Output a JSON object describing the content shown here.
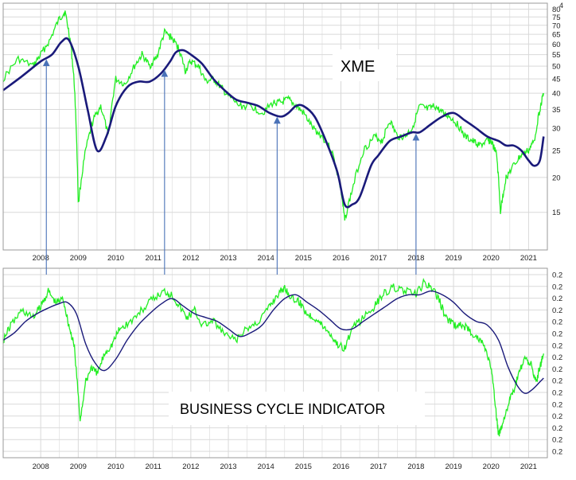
{
  "colors": {
    "price": "#22ee22",
    "average": "#1a1a7a",
    "arrow": "#4a72b8",
    "grid": "#d9d9d9",
    "axis_text": "#222222",
    "frame": "#9a9a9a"
  },
  "years": [
    "2008",
    "2009",
    "2010",
    "2011",
    "2012",
    "2013",
    "2014",
    "2015",
    "2016",
    "2017",
    "2018",
    "2019",
    "2020",
    "2021"
  ],
  "chart_data": [
    {
      "type": "line",
      "title": "XME",
      "x_range": [
        2007.0,
        2021.5
      ],
      "y_scale": "log",
      "ylim": [
        11,
        84
      ],
      "ytick_values": [
        15,
        20,
        25,
        30,
        35,
        40,
        45,
        50,
        55,
        60,
        65,
        70,
        75,
        80
      ],
      "ytick_labels": [
        "15",
        "20",
        "25",
        "30",
        "35",
        "40",
        "45",
        "50",
        "55",
        "60",
        "65",
        "70",
        "75",
        "80"
      ],
      "top_cut_label": "4",
      "series": [
        {
          "role": "price",
          "x": [
            2007.0,
            2007.4,
            2007.8,
            2008.0,
            2008.25,
            2008.5,
            2008.65,
            2008.8,
            2008.9,
            2009.0,
            2009.2,
            2009.4,
            2009.6,
            2009.8,
            2010.0,
            2010.25,
            2010.5,
            2010.7,
            2010.9,
            2011.1,
            2011.3,
            2011.5,
            2011.7,
            2011.85,
            2012.0,
            2012.2,
            2012.4,
            2012.6,
            2012.8,
            2013.0,
            2013.3,
            2013.6,
            2013.9,
            2014.2,
            2014.4,
            2014.6,
            2014.8,
            2015.0,
            2015.25,
            2015.5,
            2015.75,
            2016.0,
            2016.1,
            2016.3,
            2016.6,
            2016.9,
            2017.1,
            2017.3,
            2017.5,
            2017.7,
            2017.9,
            2018.1,
            2018.3,
            2018.5,
            2018.7,
            2018.9,
            2019.1,
            2019.3,
            2019.5,
            2019.7,
            2019.9,
            2020.0,
            2020.15,
            2020.25,
            2020.4,
            2020.6,
            2020.8,
            2021.0,
            2021.15,
            2021.3,
            2021.4
          ],
          "y": [
            45,
            53,
            50,
            55,
            62,
            74,
            78,
            60,
            42,
            16,
            25,
            32,
            36,
            28,
            45,
            43,
            50,
            55,
            50,
            54,
            66,
            63,
            57,
            48,
            52,
            50,
            44,
            45,
            42,
            39,
            36,
            36,
            34,
            37,
            37,
            38,
            36,
            34,
            30,
            28,
            25,
            18,
            14,
            18,
            25,
            28,
            27,
            32,
            28,
            28,
            30,
            36,
            35,
            36,
            34,
            33,
            31,
            28,
            27,
            26,
            27,
            27,
            24,
            15,
            20,
            22,
            24,
            25,
            27,
            35,
            40
          ]
        },
        {
          "role": "moving-average",
          "x": [
            2007.0,
            2007.5,
            2008.0,
            2008.3,
            2008.55,
            2008.75,
            2009.0,
            2009.25,
            2009.5,
            2009.75,
            2010.0,
            2010.3,
            2010.6,
            2010.9,
            2011.2,
            2011.45,
            2011.6,
            2011.8,
            2012.0,
            2012.3,
            2012.6,
            2012.9,
            2013.2,
            2013.5,
            2013.8,
            2014.1,
            2014.4,
            2014.6,
            2014.8,
            2015.0,
            2015.3,
            2015.6,
            2015.9,
            2016.1,
            2016.3,
            2016.5,
            2016.8,
            2017.0,
            2017.3,
            2017.6,
            2017.9,
            2018.1,
            2018.4,
            2018.7,
            2019.0,
            2019.3,
            2019.6,
            2019.9,
            2020.2,
            2020.4,
            2020.6,
            2020.8,
            2021.0,
            2021.15,
            2021.3,
            2021.4
          ],
          "y": [
            41,
            46,
            52,
            55,
            61,
            62,
            50,
            35,
            25,
            28,
            36,
            42,
            44,
            44,
            47,
            52,
            56,
            57,
            55,
            51,
            45,
            41,
            38,
            37,
            36,
            34,
            33,
            34,
            36,
            36,
            33,
            27,
            21,
            16,
            16,
            17,
            22,
            24,
            27,
            28,
            29,
            29,
            31,
            33,
            34,
            32,
            30,
            28,
            27,
            26,
            26,
            25,
            23,
            22,
            23,
            28
          ]
        }
      ],
      "annotation_label": "XME",
      "arrow_dates": [
        2008.15,
        2011.3,
        2014.3,
        2018.0
      ]
    },
    {
      "type": "line",
      "title": "BUSINESS CYCLE INDICATOR",
      "x_range": [
        2007.0,
        2021.5
      ],
      "ylim": [
        0,
        100
      ],
      "ytick_labels": [
        "0.2",
        "0.2",
        "0.2",
        "0.2",
        "0.2",
        "0.2",
        "0.2",
        "0.2",
        "0.2",
        "0.2",
        "0.2",
        "0.2",
        "0.2",
        "0.2",
        "0.2",
        "0.2"
      ],
      "series": [
        {
          "role": "indicator",
          "x": [
            2007.0,
            2007.2,
            2007.5,
            2007.8,
            2008.0,
            2008.2,
            2008.4,
            2008.6,
            2008.75,
            2008.9,
            2009.05,
            2009.2,
            2009.35,
            2009.5,
            2009.7,
            2009.9,
            2010.1,
            2010.4,
            2010.7,
            2011.0,
            2011.3,
            2011.5,
            2011.7,
            2011.9,
            2012.1,
            2012.3,
            2012.6,
            2012.9,
            2013.2,
            2013.5,
            2013.8,
            2014.1,
            2014.3,
            2014.5,
            2014.7,
            2014.9,
            2015.1,
            2015.3,
            2015.5,
            2015.7,
            2015.9,
            2016.1,
            2016.3,
            2016.6,
            2016.9,
            2017.1,
            2017.4,
            2017.7,
            2018.0,
            2018.2,
            2018.4,
            2018.6,
            2018.8,
            2019.0,
            2019.2,
            2019.4,
            2019.6,
            2019.8,
            2020.0,
            2020.1,
            2020.2,
            2020.3,
            2020.45,
            2020.6,
            2020.75,
            2020.9,
            2021.05,
            2021.2,
            2021.3,
            2021.4
          ],
          "y": [
            62,
            70,
            78,
            74,
            80,
            88,
            82,
            84,
            70,
            58,
            20,
            40,
            48,
            44,
            55,
            60,
            68,
            72,
            78,
            84,
            88,
            86,
            80,
            74,
            78,
            70,
            72,
            65,
            62,
            68,
            72,
            80,
            86,
            90,
            84,
            82,
            76,
            74,
            70,
            66,
            60,
            58,
            68,
            74,
            80,
            86,
            90,
            88,
            86,
            92,
            90,
            84,
            74,
            70,
            70,
            68,
            64,
            60,
            48,
            30,
            12,
            18,
            28,
            35,
            45,
            52,
            50,
            40,
            48,
            55
          ]
        },
        {
          "role": "moving-average",
          "x": [
            2007.0,
            2007.3,
            2007.6,
            2007.9,
            2008.2,
            2008.45,
            2008.7,
            2008.95,
            2009.2,
            2009.45,
            2009.7,
            2010.0,
            2010.3,
            2010.6,
            2010.9,
            2011.2,
            2011.5,
            2011.8,
            2012.1,
            2012.4,
            2012.7,
            2013.0,
            2013.3,
            2013.6,
            2013.9,
            2014.2,
            2014.5,
            2014.8,
            2015.1,
            2015.4,
            2015.7,
            2016.0,
            2016.3,
            2016.6,
            2016.9,
            2017.2,
            2017.5,
            2017.8,
            2018.1,
            2018.4,
            2018.7,
            2019.0,
            2019.3,
            2019.6,
            2019.9,
            2020.2,
            2020.45,
            2020.7,
            2020.9,
            2021.1,
            2021.3,
            2021.4
          ],
          "y": [
            62,
            66,
            72,
            76,
            79,
            81,
            82,
            76,
            60,
            50,
            46,
            52,
            62,
            70,
            76,
            81,
            84,
            80,
            76,
            74,
            72,
            68,
            64,
            66,
            70,
            78,
            84,
            86,
            82,
            78,
            73,
            68,
            68,
            72,
            76,
            80,
            84,
            86,
            86,
            88,
            86,
            82,
            76,
            72,
            70,
            62,
            48,
            38,
            34,
            36,
            40,
            42
          ]
        }
      ],
      "annotation_label": "BUSINESS CYCLE INDICATOR"
    }
  ]
}
